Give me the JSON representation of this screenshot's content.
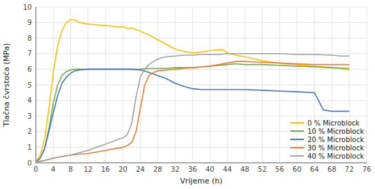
{
  "chart_data": {
    "type": "line",
    "xlabel": "Vrijemе (h)",
    "ylabel": "Tlačna čvrstoća (MPa)",
    "xlim": [
      0,
      76
    ],
    "ylim": [
      0,
      10
    ],
    "xticks": [
      0,
      4,
      8,
      12,
      16,
      20,
      24,
      28,
      32,
      36,
      40,
      44,
      48,
      52,
      56,
      60,
      64,
      68,
      72,
      76
    ],
    "yticks": [
      0,
      1,
      2,
      3,
      4,
      5,
      6,
      7,
      8,
      9,
      10
    ],
    "grid": true,
    "legend": "lower right",
    "series": [
      {
        "name": "0 % Microblock",
        "color": "#FFC000",
        "x": [
          0,
          1,
          2,
          3,
          4,
          5,
          6,
          7,
          8,
          9,
          10,
          11,
          12,
          14,
          16,
          18,
          19,
          20,
          21,
          22,
          23,
          24,
          26,
          28,
          30,
          32,
          34,
          36,
          38,
          40,
          42,
          43,
          44,
          46,
          48,
          52,
          56,
          60,
          64,
          68,
          70,
          72
        ],
        "values": [
          0.05,
          0.5,
          1.5,
          3.5,
          5.8,
          7.5,
          8.5,
          9.0,
          9.2,
          9.15,
          9.0,
          8.95,
          8.9,
          8.85,
          8.8,
          8.75,
          8.7,
          8.75,
          8.6,
          8.65,
          8.55,
          8.45,
          8.2,
          7.9,
          7.6,
          7.3,
          7.15,
          7.05,
          7.1,
          7.2,
          7.25,
          7.25,
          7.05,
          6.9,
          6.8,
          6.55,
          6.4,
          6.3,
          6.2,
          6.1,
          6.05,
          5.95
        ]
      },
      {
        "name": "10 % Microblock",
        "color": "#70AD47",
        "x": [
          0,
          1,
          2,
          3,
          4,
          5,
          6,
          7,
          8,
          9,
          10,
          12,
          14,
          16,
          18,
          20,
          22,
          24,
          26,
          28,
          30,
          32,
          34,
          36,
          38,
          40,
          42,
          44,
          46,
          48,
          52,
          56,
          60,
          64,
          68,
          72
        ],
        "values": [
          0.05,
          0.3,
          0.9,
          2.2,
          3.8,
          5.0,
          5.6,
          5.85,
          5.95,
          6.0,
          6.0,
          6.0,
          6.0,
          6.0,
          6.0,
          6.0,
          6.0,
          6.0,
          6.05,
          6.05,
          6.05,
          6.1,
          6.1,
          6.1,
          6.15,
          6.2,
          6.25,
          6.3,
          6.35,
          6.3,
          6.3,
          6.25,
          6.2,
          6.15,
          6.1,
          6.05
        ]
      },
      {
        "name": "20 % Microblock",
        "color": "#4472C4",
        "x": [
          0,
          1,
          2,
          3,
          4,
          5,
          6,
          7,
          8,
          9,
          10,
          12,
          14,
          16,
          18,
          20,
          22,
          24,
          26,
          28,
          30,
          32,
          34,
          36,
          38,
          40,
          42,
          44,
          46,
          48,
          52,
          56,
          60,
          64,
          66,
          68,
          70,
          72
        ],
        "values": [
          0.05,
          0.3,
          0.9,
          2.0,
          3.2,
          4.3,
          5.1,
          5.5,
          5.75,
          5.9,
          5.95,
          6.0,
          6.0,
          6.0,
          6.0,
          6.0,
          6.0,
          5.95,
          5.8,
          5.6,
          5.4,
          5.1,
          4.9,
          4.75,
          4.7,
          4.7,
          4.7,
          4.7,
          4.7,
          4.7,
          4.65,
          4.6,
          4.55,
          4.5,
          3.4,
          3.3,
          3.3,
          3.3
        ]
      },
      {
        "name": "30 % Microblock",
        "color": "#ED7D31",
        "x": [
          0,
          2,
          4,
          6,
          8,
          10,
          12,
          14,
          16,
          18,
          20,
          21,
          22,
          23,
          24,
          25,
          26,
          27,
          28,
          30,
          32,
          34,
          36,
          38,
          40,
          42,
          44,
          46,
          48,
          52,
          56,
          60,
          64,
          68,
          72
        ],
        "values": [
          0.05,
          0.15,
          0.3,
          0.4,
          0.5,
          0.55,
          0.6,
          0.7,
          0.8,
          0.9,
          1.0,
          1.1,
          1.3,
          2.0,
          3.5,
          5.0,
          5.6,
          5.8,
          5.9,
          5.95,
          6.0,
          6.05,
          6.1,
          6.15,
          6.2,
          6.3,
          6.4,
          6.5,
          6.5,
          6.45,
          6.4,
          6.35,
          6.3,
          6.3,
          6.3
        ]
      },
      {
        "name": "40 % Microblock",
        "color": "#A0A0A0",
        "x": [
          0,
          2,
          4,
          6,
          8,
          10,
          12,
          14,
          16,
          18,
          20,
          21,
          22,
          23,
          24,
          25,
          26,
          27,
          28,
          29,
          30,
          32,
          34,
          36,
          38,
          40,
          42,
          44,
          46,
          48,
          52,
          56,
          60,
          64,
          68,
          70,
          72
        ],
        "values": [
          0.05,
          0.15,
          0.3,
          0.4,
          0.5,
          0.65,
          0.8,
          1.0,
          1.2,
          1.4,
          1.6,
          1.8,
          2.5,
          4.2,
          5.5,
          6.0,
          6.3,
          6.5,
          6.65,
          6.75,
          6.8,
          6.85,
          6.9,
          6.9,
          6.95,
          6.95,
          6.95,
          7.0,
          7.0,
          7.0,
          7.0,
          7.0,
          6.95,
          6.95,
          6.9,
          6.85,
          6.85
        ]
      }
    ]
  }
}
